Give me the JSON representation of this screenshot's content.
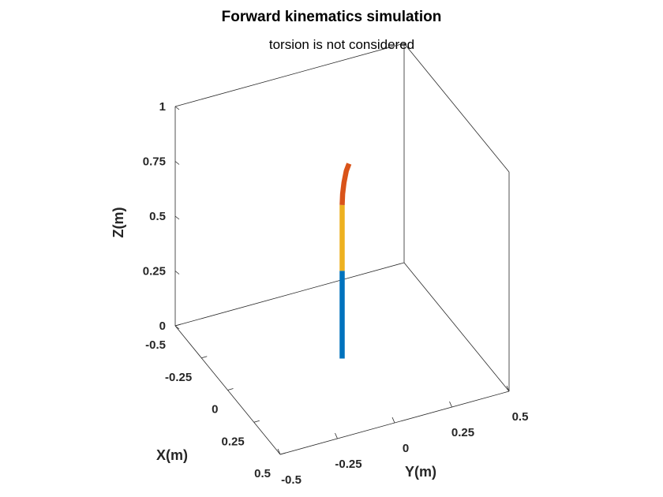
{
  "figure": {
    "title": "Forward kinematics simulation",
    "subtitle": "torsion is not considered"
  },
  "chart_data": {
    "type": "line3d",
    "title": "Forward kinematics simulation",
    "subtitle": "torsion is not considered",
    "xlabel": "X(m)",
    "ylabel": "Y(m)",
    "zlabel": "Z(m)",
    "xlim": [
      -0.5,
      0.5
    ],
    "ylim": [
      -0.5,
      0.5
    ],
    "zlim": [
      0,
      1
    ],
    "xticks": [
      -0.5,
      -0.25,
      0,
      0.25,
      0.5
    ],
    "yticks": [
      -0.5,
      -0.25,
      0,
      0.25,
      0.5
    ],
    "zticks": [
      0,
      0.25,
      0.5,
      0.75,
      1
    ],
    "xticklabels": [
      "-0.5",
      "-0.25",
      "0",
      "0.25",
      "0.5"
    ],
    "yticklabels": [
      "-0.5",
      "-0.25",
      "0",
      "0.25",
      "0.5"
    ],
    "zticklabels": [
      "0",
      "0.25",
      "0.5",
      "0.75",
      "1"
    ],
    "grid": false,
    "box": true,
    "series": [
      {
        "color": "#0072BD",
        "points": [
          [
            0,
            0,
            0
          ],
          [
            0,
            0,
            0.1
          ],
          [
            0,
            0,
            0.2
          ],
          [
            0,
            0,
            0.3
          ],
          [
            0,
            0,
            0.4
          ]
        ]
      },
      {
        "color": "#EDB120",
        "points": [
          [
            0,
            0,
            0.4
          ],
          [
            0,
            0,
            0.5
          ],
          [
            0,
            0,
            0.6
          ],
          [
            0,
            0,
            0.7
          ]
        ]
      },
      {
        "color": "#D95319",
        "points": [
          [
            0,
            0,
            0.7
          ],
          [
            0,
            0.002,
            0.75
          ],
          [
            0,
            0.008,
            0.8
          ],
          [
            0,
            0.018,
            0.85
          ],
          [
            0,
            0.03,
            0.88
          ]
        ]
      }
    ]
  }
}
